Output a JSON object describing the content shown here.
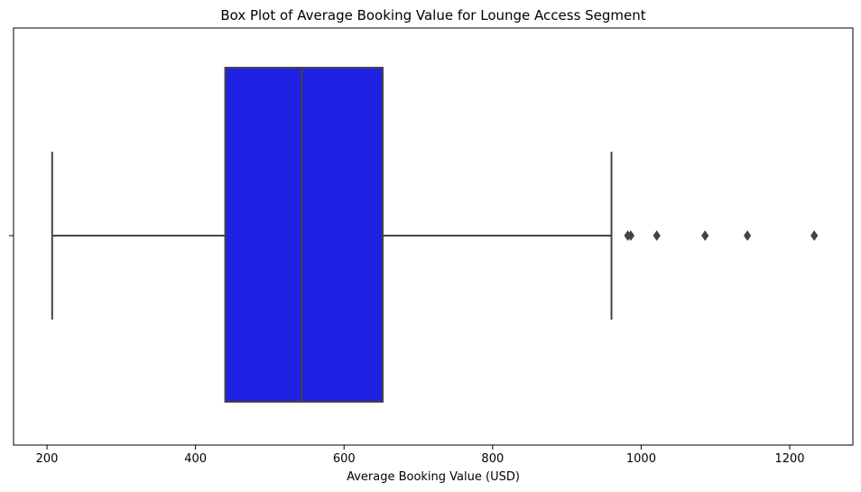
{
  "chart_data": {
    "type": "box",
    "title": "Box Plot of Average Booking Value for Lounge Access Segment",
    "xlabel": "Average Booking Value (USD)",
    "ylabel": "",
    "orientation": "horizontal",
    "xlim": [
      155,
      1285
    ],
    "xticks": [
      200,
      400,
      600,
      800,
      1000,
      1200
    ],
    "xtick_labels": [
      "200",
      "400",
      "600",
      "800",
      "1000",
      "1200"
    ],
    "grid": false,
    "box": {
      "whisker_low": 207,
      "q1": 440,
      "median": 543,
      "q3": 652,
      "whisker_high": 960,
      "outliers": [
        982,
        986,
        1021,
        1086,
        1143,
        1233
      ]
    },
    "colors": {
      "box_fill": "#1f22e2",
      "lines": "#444444"
    }
  }
}
